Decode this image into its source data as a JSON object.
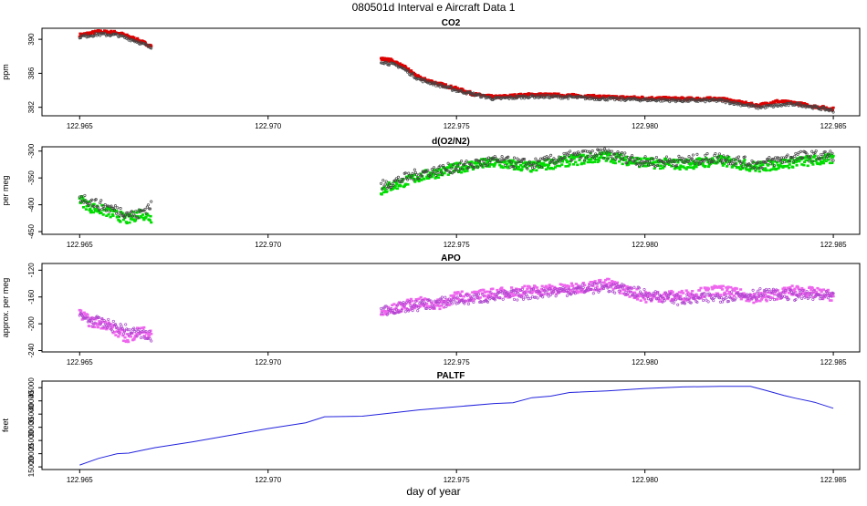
{
  "figure_title": "080501d   Interval e Aircraft Data 1",
  "xlabel": "day of year",
  "chart_data": [
    {
      "type": "scatter",
      "title": "CO2",
      "ylabel": "ppm",
      "xlim": [
        122.964,
        122.9857
      ],
      "ylim": [
        381,
        391.3
      ],
      "xticks": [
        122.965,
        122.97,
        122.975,
        122.98,
        122.985
      ],
      "xtick_labels": [
        "122.965",
        "122.970",
        "122.975",
        "122.980",
        "122.985"
      ],
      "yticks": [
        382,
        386,
        390
      ],
      "ytick_labels": [
        "382",
        "386",
        "390"
      ],
      "grid": false,
      "series": [
        {
          "color": "#dd0000",
          "segments": [
            {
              "x": [
                122.965,
                122.9655,
                122.966,
                122.9665,
                122.9669
              ],
              "y": [
                390.5,
                390.9,
                390.8,
                390.0,
                389.2
              ]
            },
            {
              "x": [
                122.973,
                122.9733,
                122.9737,
                122.974,
                122.9745,
                122.975,
                122.9755,
                122.976,
                122.977,
                122.978,
                122.979,
                122.98,
                122.981,
                122.982,
                122.983,
                122.9835,
                122.984,
                122.9845,
                122.985
              ],
              "y": [
                387.7,
                387.5,
                386.5,
                385.5,
                384.8,
                384.2,
                383.5,
                383.2,
                383.5,
                383.4,
                383.2,
                383.1,
                383.0,
                383.0,
                382.2,
                382.7,
                382.5,
                382.1,
                381.8
              ]
            }
          ]
        },
        {
          "color": "#444444",
          "segments": [
            {
              "x": [
                122.965,
                122.9655,
                122.966,
                122.9665,
                122.9669
              ],
              "y": [
                390.3,
                390.6,
                390.5,
                389.8,
                389.0
              ]
            },
            {
              "x": [
                122.973,
                122.9735,
                122.974,
                122.975,
                122.976,
                122.977,
                122.978,
                122.979,
                122.98,
                122.981,
                122.982,
                122.983,
                122.984,
                122.985
              ],
              "y": [
                387.4,
                386.8,
                385.3,
                384.0,
                383.0,
                383.3,
                383.2,
                383.0,
                382.9,
                382.8,
                382.8,
                382.0,
                382.4,
                381.6
              ]
            }
          ]
        }
      ]
    },
    {
      "type": "scatter",
      "title": "d(O2/N2)",
      "ylabel": "per meg",
      "xlim": [
        122.964,
        122.9857
      ],
      "ylim": [
        -455,
        -292
      ],
      "xticks": [
        122.965,
        122.97,
        122.975,
        122.98,
        122.985
      ],
      "xtick_labels": [
        "122.965",
        "122.970",
        "122.975",
        "122.980",
        "122.985"
      ],
      "yticks": [
        -450,
        -400,
        -350,
        -300
      ],
      "ytick_labels": [
        "-450",
        "-400",
        "-350",
        "-300"
      ],
      "grid": false,
      "series": [
        {
          "color": "#00dd00",
          "segments": [
            {
              "x": [
                122.965,
                122.9653,
                122.9657,
                122.966,
                122.9663,
                122.9666,
                122.9669
              ],
              "y": [
                -390,
                -405,
                -412,
                -420,
                -428,
                -415,
                -425
              ]
            },
            {
              "x": [
                122.973,
                122.9735,
                122.974,
                122.9745,
                122.975,
                122.9755,
                122.976,
                122.977,
                122.978,
                122.979,
                122.98,
                122.981,
                122.982,
                122.983,
                122.984,
                122.985
              ],
              "y": [
                -372,
                -360,
                -348,
                -340,
                -332,
                -325,
                -322,
                -330,
                -318,
                -310,
                -322,
                -325,
                -318,
                -330,
                -320,
                -315
              ]
            }
          ]
        },
        {
          "color": "#444444",
          "segments": [
            {
              "x": [
                122.965,
                122.9655,
                122.966,
                122.9665,
                122.9669
              ],
              "y": [
                -385,
                -400,
                -410,
                -420,
                -400
              ]
            },
            {
              "x": [
                122.973,
                122.974,
                122.975,
                122.976,
                122.977,
                122.978,
                122.979,
                122.98,
                122.981,
                122.982,
                122.983,
                122.984,
                122.985
              ],
              "y": [
                -365,
                -342,
                -330,
                -318,
                -325,
                -310,
                -305,
                -320,
                -318,
                -312,
                -325,
                -310,
                -308
              ]
            }
          ]
        }
      ]
    },
    {
      "type": "scatter",
      "title": "APO",
      "ylabel": "approx. per meg",
      "xlim": [
        122.964,
        122.9857
      ],
      "ylim": [
        -242,
        -110
      ],
      "xticks": [
        122.965,
        122.97,
        122.975,
        122.98,
        122.985
      ],
      "xtick_labels": [
        "122.965",
        "122.970",
        "122.975",
        "122.980",
        "122.985"
      ],
      "yticks": [
        -240,
        -200,
        -160,
        -120
      ],
      "ytick_labels": [
        "-240",
        "-200",
        "-160",
        "-120"
      ],
      "grid": false,
      "series": [
        {
          "color": "#ee66ee",
          "segments": [
            {
              "x": [
                122.965,
                122.9653,
                122.9657,
                122.966,
                122.9663,
                122.9666,
                122.9669
              ],
              "y": [
                -185,
                -198,
                -200,
                -212,
                -222,
                -210,
                -218
              ]
            },
            {
              "x": [
                122.973,
                122.9735,
                122.974,
                122.9745,
                122.975,
                122.9755,
                122.976,
                122.977,
                122.978,
                122.979,
                122.98,
                122.981,
                122.982,
                122.983,
                122.984,
                122.985
              ],
              "y": [
                -185,
                -175,
                -168,
                -172,
                -160,
                -158,
                -155,
                -150,
                -148,
                -140,
                -160,
                -158,
                -150,
                -162,
                -150,
                -158
              ]
            }
          ]
        },
        {
          "color": "#aa44cc",
          "segments": [
            {
              "x": [
                122.965,
                122.966,
                122.9669
              ],
              "y": [
                -190,
                -205,
                -220
              ]
            },
            {
              "x": [
                122.973,
                122.975,
                122.977,
                122.979,
                122.981,
                122.983,
                122.985
              ],
              "y": [
                -180,
                -165,
                -155,
                -145,
                -165,
                -155,
                -160
              ]
            }
          ]
        }
      ]
    },
    {
      "type": "line",
      "title": "PALTF",
      "ylabel": "feet",
      "xlim": [
        122.964,
        122.9857
      ],
      "ylim": [
        14000,
        47500
      ],
      "xticks": [
        122.965,
        122.97,
        122.975,
        122.98,
        122.985
      ],
      "xtick_labels": [
        "122.965",
        "122.970",
        "122.975",
        "122.980",
        "122.985"
      ],
      "yticks": [
        15000,
        20000,
        25000,
        30000,
        35000,
        40000,
        45000
      ],
      "ytick_labels": [
        "15000",
        "20000",
        "25000",
        "30000",
        "35000",
        "40000",
        "45000"
      ],
      "grid": false,
      "series": [
        {
          "color": "#2222dd",
          "x": [
            122.965,
            122.9655,
            122.966,
            122.9663,
            122.9665,
            122.967,
            122.968,
            122.969,
            122.97,
            122.971,
            122.9715,
            122.9725,
            122.973,
            122.974,
            122.975,
            122.976,
            122.9765,
            122.977,
            122.9775,
            122.978,
            122.979,
            122.98,
            122.981,
            122.982,
            122.9828,
            122.9832,
            122.9837,
            122.984,
            122.9845,
            122.985
          ],
          "y": [
            15700,
            18200,
            20000,
            20200,
            20800,
            22300,
            24500,
            27000,
            29500,
            31700,
            34000,
            34200,
            35000,
            36600,
            37800,
            39000,
            39300,
            41200,
            41800,
            43200,
            43800,
            44700,
            45300,
            45500,
            45500,
            44000,
            42000,
            41000,
            39500,
            37200
          ]
        }
      ]
    }
  ]
}
